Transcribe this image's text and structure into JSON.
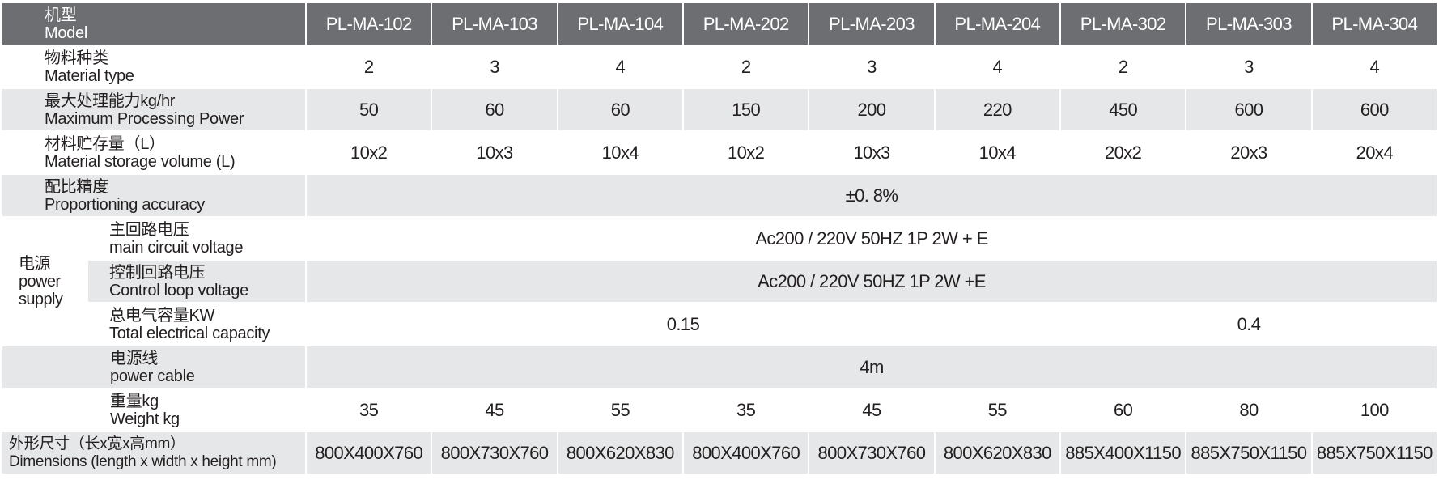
{
  "header": {
    "cn": "机型",
    "en": "Model",
    "models": [
      "PL-MA-102",
      "PL-MA-103",
      "PL-MA-104",
      "PL-MA-202",
      "PL-MA-203",
      "PL-MA-204",
      "PL-MA-302",
      "PL-MA-303",
      "PL-MA-304"
    ]
  },
  "rows": [
    {
      "cn": "物料种类",
      "en": "Material type",
      "cells": [
        {
          "text": "2"
        },
        {
          "text": "3"
        },
        {
          "text": "4"
        },
        {
          "text": "2"
        },
        {
          "text": "3"
        },
        {
          "text": "4"
        },
        {
          "text": "2"
        },
        {
          "text": "3"
        },
        {
          "text": "4"
        }
      ]
    },
    {
      "cn": "最大处理能力kg/hr",
      "en": "Maximum Processing Power",
      "cells": [
        {
          "text": "50"
        },
        {
          "text": "60"
        },
        {
          "text": "60"
        },
        {
          "text": "150"
        },
        {
          "text": "200"
        },
        {
          "text": "220"
        },
        {
          "text": "450"
        },
        {
          "text": "600"
        },
        {
          "text": "600"
        }
      ]
    },
    {
      "cn": "材料贮存量（L）",
      "en": "Material storage volume (L)",
      "cells": [
        {
          "text": "10x2"
        },
        {
          "text": "10x3"
        },
        {
          "text": "10x4"
        },
        {
          "text": "10x2"
        },
        {
          "text": "10x3"
        },
        {
          "text": "10x4"
        },
        {
          "text": "20x2"
        },
        {
          "text": "20x3"
        },
        {
          "text": "20x4"
        }
      ]
    },
    {
      "cn": "配比精度",
      "en": "Proportioning accuracy",
      "cells": [
        {
          "text": "±0. 8%",
          "span": 9
        }
      ]
    },
    {
      "cn": "电源",
      "en": "power supply",
      "sub": [
        {
          "cn": "主回路电压",
          "en": "main circuit voltage",
          "cells": [
            {
              "text": "Ac200 / 220V 50HZ 1P 2W + E",
              "span": 9
            }
          ]
        },
        {
          "cn": "控制回路电压",
          "en": "Control loop voltage",
          "cells": [
            {
              "text": "Ac200 / 220V 50HZ 1P 2W +E",
              "span": 9
            }
          ]
        },
        {
          "cn": "总电气容量KW",
          "en": "Total electrical capacity",
          "cells": [
            {
              "text": "0.15",
              "span": 6
            },
            {
              "text": "0.4",
              "span": 3
            }
          ]
        }
      ]
    },
    {
      "cn": "电源线",
      "en": "power cable",
      "cells": [
        {
          "text": "4m",
          "span": 9
        }
      ]
    },
    {
      "cn": "重量kg",
      "en": "Weight kg",
      "cells": [
        {
          "text": "35"
        },
        {
          "text": "45"
        },
        {
          "text": "55"
        },
        {
          "text": "35"
        },
        {
          "text": "45"
        },
        {
          "text": "55"
        },
        {
          "text": "60"
        },
        {
          "text": "80"
        },
        {
          "text": "100"
        }
      ]
    },
    {
      "cn": "外形尺寸（长x宽x高mm）",
      "en": "Dimensions (length x width x height mm)",
      "cells": [
        {
          "text": "800X400X760"
        },
        {
          "text": "800X730X760"
        },
        {
          "text": "800X620X830"
        },
        {
          "text": "800X400X760"
        },
        {
          "text": "800X730X760"
        },
        {
          "text": "800X620X830"
        },
        {
          "text": "885X400X1150"
        },
        {
          "text": "885X750X1150"
        },
        {
          "text": "885X750X1150"
        }
      ]
    }
  ]
}
